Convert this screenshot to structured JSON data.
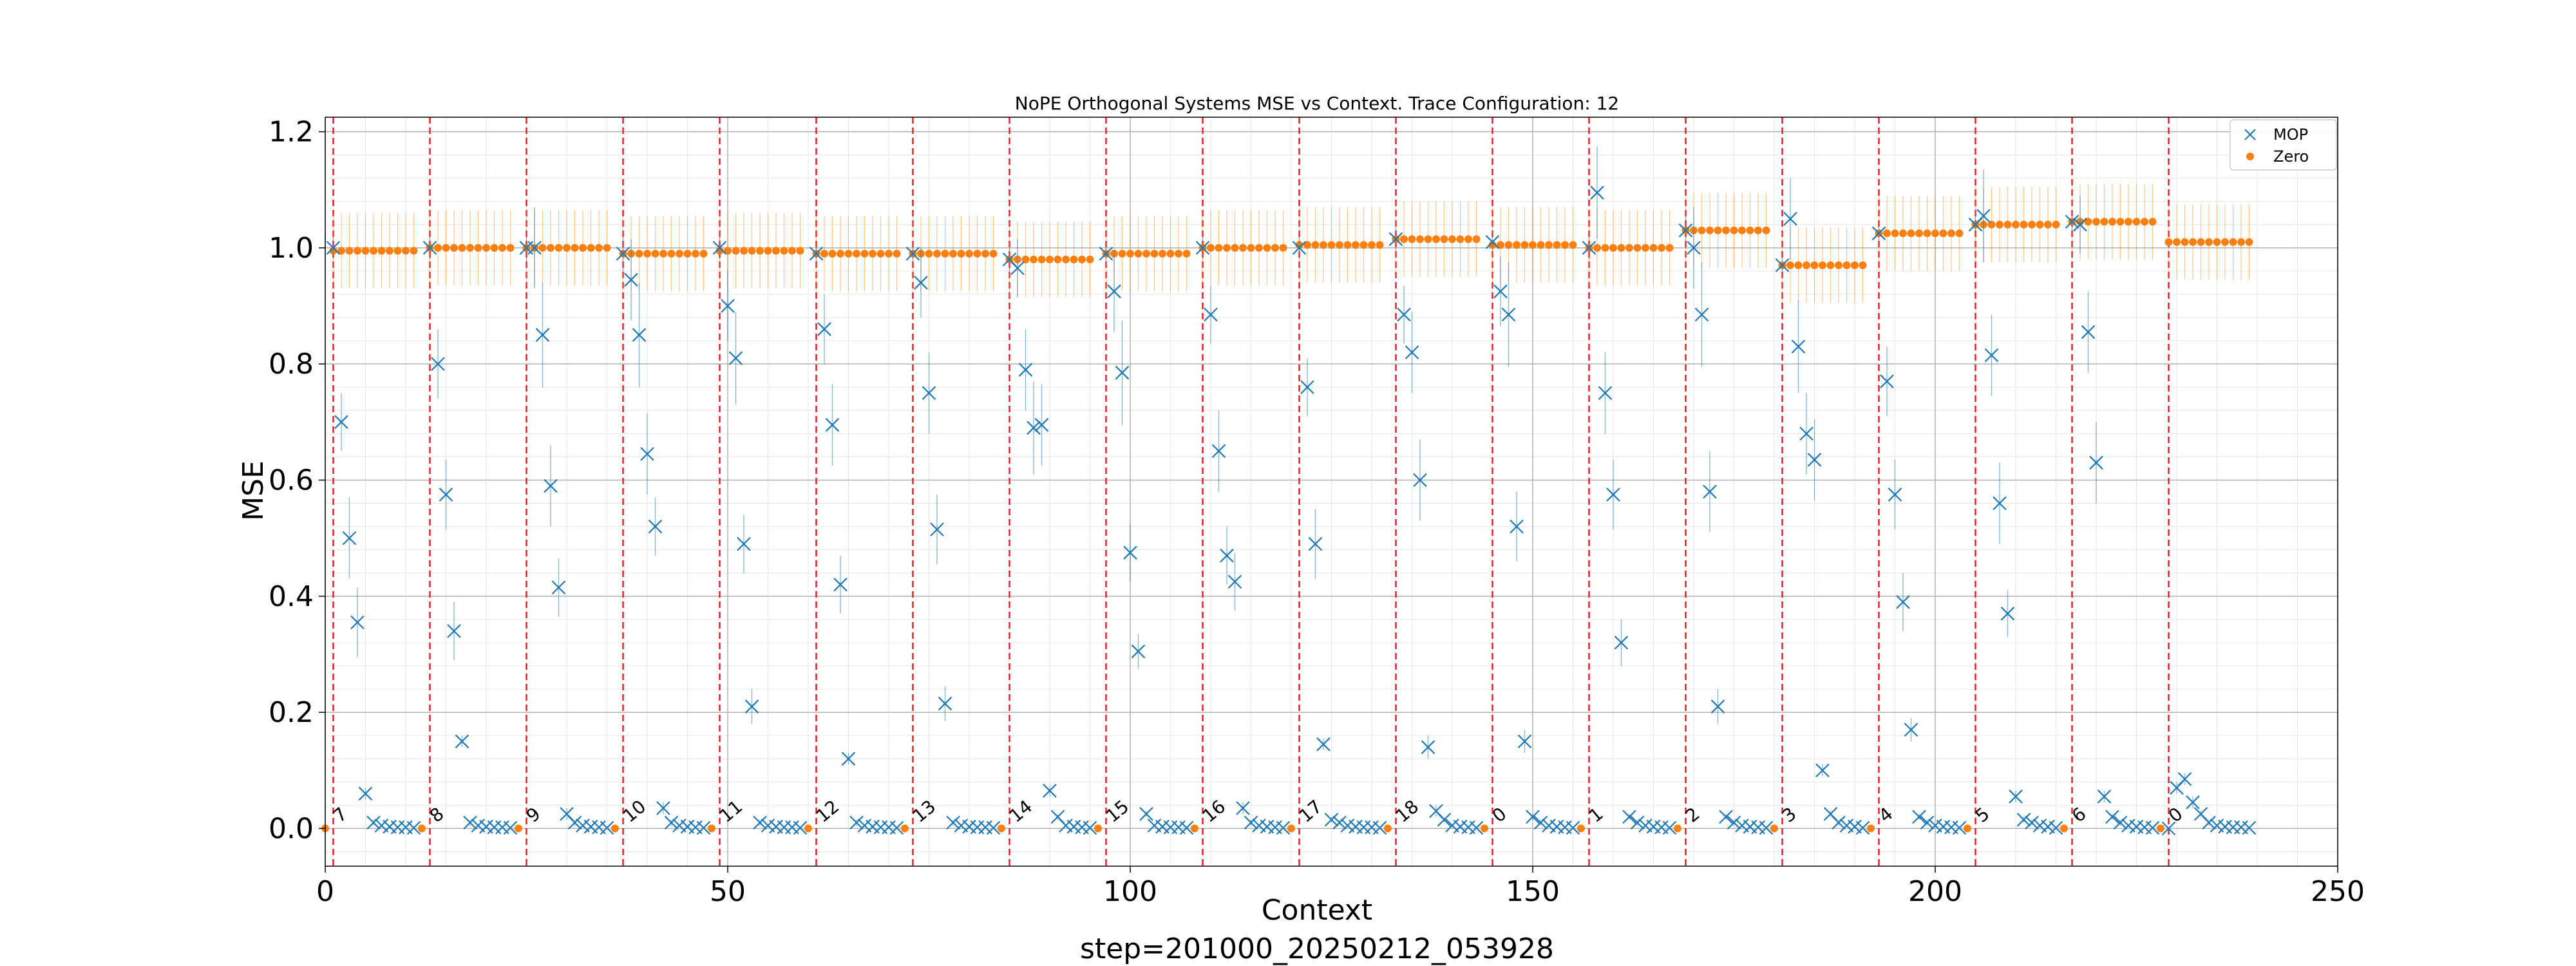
{
  "chart_data": {
    "type": "scatter",
    "title": "NoPE Orthogonal Systems MSE vs Context. Trace Configuration: 12",
    "xlabel": "Context",
    "ylabel": "MSE",
    "footer": "step=201000_20250212_053928",
    "xlim": [
      0,
      250
    ],
    "ylim": [
      -0.065,
      1.225
    ],
    "xticks": [
      0,
      50,
      100,
      150,
      200,
      250
    ],
    "yticks": [
      0.0,
      0.2,
      0.4,
      0.6,
      0.8,
      1.0,
      1.2
    ],
    "grid": true,
    "minor_grid": true,
    "legend_position": "top-right",
    "segment_boundaries": [
      1,
      13,
      25,
      37,
      49,
      61,
      73,
      85,
      97,
      109,
      121,
      133,
      145,
      157,
      169,
      181,
      193,
      205,
      217,
      229
    ],
    "segment_labels": [
      {
        "x": 1,
        "label": "7"
      },
      {
        "x": 13,
        "label": "8"
      },
      {
        "x": 25,
        "label": "9"
      },
      {
        "x": 37,
        "label": "10"
      },
      {
        "x": 49,
        "label": "11"
      },
      {
        "x": 61,
        "label": "12"
      },
      {
        "x": 73,
        "label": "13"
      },
      {
        "x": 85,
        "label": "14"
      },
      {
        "x": 97,
        "label": "15"
      },
      {
        "x": 109,
        "label": "16"
      },
      {
        "x": 121,
        "label": "17"
      },
      {
        "x": 133,
        "label": "18"
      },
      {
        "x": 145,
        "label": "0"
      },
      {
        "x": 157,
        "label": "1"
      },
      {
        "x": 169,
        "label": "2"
      },
      {
        "x": 181,
        "label": "3"
      },
      {
        "x": 193,
        "label": "4"
      },
      {
        "x": 205,
        "label": "5"
      },
      {
        "x": 217,
        "label": "6"
      },
      {
        "x": 229,
        "label": "0"
      }
    ],
    "colors": {
      "mop": "#1f77b4",
      "zero": "#ff7f0e",
      "boundary": "#d62728"
    },
    "series": [
      {
        "name": "MOP",
        "marker": "x",
        "segments": [
          {
            "start": 1,
            "values": [
              1.0,
              0.7,
              0.5,
              0.355,
              0.06,
              0.01,
              0.005,
              0.003,
              0.002,
              0.002,
              0.001
            ],
            "errors": [
              0.02,
              0.05,
              0.07,
              0.06,
              0.01,
              0.005,
              0.003,
              0.002,
              0.002,
              0.002,
              0.001
            ]
          },
          {
            "start": 13,
            "values": [
              1.0,
              0.8,
              0.575,
              0.34,
              0.15,
              0.01,
              0.005,
              0.003,
              0.002,
              0.002,
              0.001
            ],
            "errors": [
              0.02,
              0.06,
              0.06,
              0.05,
              0.01,
              0.005,
              0.003,
              0.002,
              0.002,
              0.002,
              0.001
            ]
          },
          {
            "start": 25,
            "values": [
              1.0,
              1.0,
              0.85,
              0.59,
              0.415,
              0.025,
              0.01,
              0.005,
              0.003,
              0.002,
              0.001
            ],
            "errors": [
              0.03,
              0.07,
              0.09,
              0.07,
              0.05,
              0.01,
              0.005,
              0.003,
              0.002,
              0.002,
              0.001
            ]
          },
          {
            "start": 37,
            "values": [
              0.99,
              0.945,
              0.85,
              0.645,
              0.52,
              0.035,
              0.01,
              0.005,
              0.003,
              0.002,
              0.001
            ],
            "errors": [
              0.03,
              0.07,
              0.09,
              0.07,
              0.05,
              0.01,
              0.005,
              0.003,
              0.002,
              0.002,
              0.001
            ]
          },
          {
            "start": 49,
            "values": [
              1.0,
              0.9,
              0.81,
              0.49,
              0.21,
              0.01,
              0.005,
              0.003,
              0.002,
              0.002,
              0.001
            ],
            "errors": [
              0.02,
              0.06,
              0.08,
              0.05,
              0.03,
              0.005,
              0.003,
              0.002,
              0.002,
              0.002,
              0.001
            ]
          },
          {
            "start": 61,
            "values": [
              0.99,
              0.86,
              0.695,
              0.42,
              0.12,
              0.01,
              0.005,
              0.003,
              0.002,
              0.002,
              0.001
            ],
            "errors": [
              0.02,
              0.06,
              0.07,
              0.05,
              0.01,
              0.005,
              0.003,
              0.002,
              0.002,
              0.002,
              0.001
            ]
          },
          {
            "start": 73,
            "values": [
              0.99,
              0.94,
              0.75,
              0.515,
              0.215,
              0.01,
              0.005,
              0.003,
              0.002,
              0.002,
              0.001
            ],
            "errors": [
              0.02,
              0.06,
              0.07,
              0.06,
              0.03,
              0.005,
              0.003,
              0.002,
              0.002,
              0.002,
              0.001
            ]
          },
          {
            "start": 85,
            "values": [
              0.98,
              0.965,
              0.79,
              0.69,
              0.695,
              0.065,
              0.02,
              0.005,
              0.003,
              0.002,
              0.001
            ],
            "errors": [
              0.02,
              0.05,
              0.07,
              0.08,
              0.07,
              0.01,
              0.005,
              0.003,
              0.002,
              0.002,
              0.001
            ]
          },
          {
            "start": 97,
            "values": [
              0.99,
              0.925,
              0.785,
              0.475,
              0.305,
              0.025,
              0.005,
              0.003,
              0.002,
              0.002,
              0.001
            ],
            "errors": [
              0.02,
              0.07,
              0.09,
              0.05,
              0.03,
              0.005,
              0.003,
              0.002,
              0.002,
              0.002,
              0.001
            ]
          },
          {
            "start": 109,
            "values": [
              1.0,
              0.885,
              0.65,
              0.47,
              0.425,
              0.035,
              0.01,
              0.005,
              0.003,
              0.002,
              0.001
            ],
            "errors": [
              0.02,
              0.05,
              0.07,
              0.05,
              0.05,
              0.01,
              0.005,
              0.003,
              0.002,
              0.002,
              0.001
            ]
          },
          {
            "start": 121,
            "values": [
              1.0,
              0.76,
              0.49,
              0.145,
              0.015,
              0.01,
              0.005,
              0.003,
              0.002,
              0.002,
              0.001
            ],
            "errors": [
              0.02,
              0.05,
              0.06,
              0.01,
              0.005,
              0.005,
              0.003,
              0.002,
              0.002,
              0.002,
              0.001
            ]
          },
          {
            "start": 133,
            "values": [
              1.015,
              0.885,
              0.82,
              0.6,
              0.14,
              0.03,
              0.015,
              0.005,
              0.003,
              0.002,
              0.001
            ],
            "errors": [
              0.02,
              0.05,
              0.07,
              0.07,
              0.02,
              0.01,
              0.005,
              0.003,
              0.002,
              0.002,
              0.001
            ]
          },
          {
            "start": 145,
            "values": [
              1.01,
              0.925,
              0.885,
              0.52,
              0.15,
              0.02,
              0.01,
              0.005,
              0.003,
              0.002,
              0.001
            ],
            "errors": [
              0.02,
              0.06,
              0.09,
              0.06,
              0.02,
              0.005,
              0.005,
              0.003,
              0.002,
              0.002,
              0.001
            ]
          },
          {
            "start": 157,
            "values": [
              1.0,
              1.095,
              0.75,
              0.575,
              0.32,
              0.02,
              0.01,
              0.005,
              0.003,
              0.002,
              0.001
            ],
            "errors": [
              0.02,
              0.08,
              0.07,
              0.06,
              0.04,
              0.005,
              0.005,
              0.003,
              0.002,
              0.002,
              0.001
            ]
          },
          {
            "start": 169,
            "values": [
              1.03,
              1.0,
              0.885,
              0.58,
              0.21,
              0.02,
              0.01,
              0.005,
              0.003,
              0.002,
              0.001
            ],
            "errors": [
              0.03,
              0.07,
              0.09,
              0.07,
              0.03,
              0.005,
              0.005,
              0.003,
              0.002,
              0.002,
              0.001
            ]
          },
          {
            "start": 181,
            "values": [
              0.97,
              1.05,
              0.83,
              0.68,
              0.635,
              0.1,
              0.025,
              0.01,
              0.005,
              0.003,
              0.001
            ],
            "errors": [
              0.02,
              0.07,
              0.08,
              0.07,
              0.07,
              0.01,
              0.005,
              0.005,
              0.003,
              0.002,
              0.001
            ]
          },
          {
            "start": 193,
            "values": [
              1.025,
              0.77,
              0.575,
              0.39,
              0.17,
              0.02,
              0.01,
              0.005,
              0.003,
              0.002,
              0.001
            ],
            "errors": [
              0.02,
              0.06,
              0.06,
              0.05,
              0.02,
              0.005,
              0.005,
              0.003,
              0.002,
              0.002,
              0.001
            ]
          },
          {
            "start": 205,
            "values": [
              1.04,
              1.055,
              0.815,
              0.56,
              0.37,
              0.055,
              0.015,
              0.01,
              0.005,
              0.003,
              0.001
            ],
            "errors": [
              0.02,
              0.08,
              0.07,
              0.07,
              0.04,
              0.01,
              0.005,
              0.005,
              0.003,
              0.002,
              0.001
            ]
          },
          {
            "start": 217,
            "values": [
              1.045,
              1.04,
              0.855,
              0.63,
              0.055,
              0.02,
              0.01,
              0.005,
              0.003,
              0.002,
              0.001
            ],
            "errors": [
              0.02,
              0.05,
              0.07,
              0.07,
              0.01,
              0.005,
              0.005,
              0.003,
              0.002,
              0.002,
              0.001
            ]
          },
          {
            "start": 229,
            "values": [
              0.0,
              0.07,
              0.085,
              0.045,
              0.025,
              0.01,
              0.005,
              0.003,
              0.002,
              0.002,
              0.001
            ],
            "errors": [
              0.002,
              0.01,
              0.01,
              0.01,
              0.005,
              0.005,
              0.003,
              0.002,
              0.002,
              0.002,
              0.001
            ]
          }
        ]
      },
      {
        "name": "Zero",
        "marker": "o",
        "zero_at_boundary": true,
        "error": 0.065,
        "segment_levels": [
          {
            "start": 1,
            "value": 0.995
          },
          {
            "start": 13,
            "value": 1.0
          },
          {
            "start": 25,
            "value": 1.0
          },
          {
            "start": 37,
            "value": 0.99
          },
          {
            "start": 49,
            "value": 0.995
          },
          {
            "start": 61,
            "value": 0.99
          },
          {
            "start": 73,
            "value": 0.99
          },
          {
            "start": 85,
            "value": 0.98
          },
          {
            "start": 97,
            "value": 0.99
          },
          {
            "start": 109,
            "value": 1.0
          },
          {
            "start": 121,
            "value": 1.005
          },
          {
            "start": 133,
            "value": 1.015
          },
          {
            "start": 145,
            "value": 1.005
          },
          {
            "start": 157,
            "value": 1.0
          },
          {
            "start": 169,
            "value": 1.03
          },
          {
            "start": 181,
            "value": 0.97
          },
          {
            "start": 193,
            "value": 1.025
          },
          {
            "start": 205,
            "value": 1.04
          },
          {
            "start": 217,
            "value": 1.045
          },
          {
            "start": 229,
            "value": 1.01
          }
        ]
      }
    ]
  }
}
